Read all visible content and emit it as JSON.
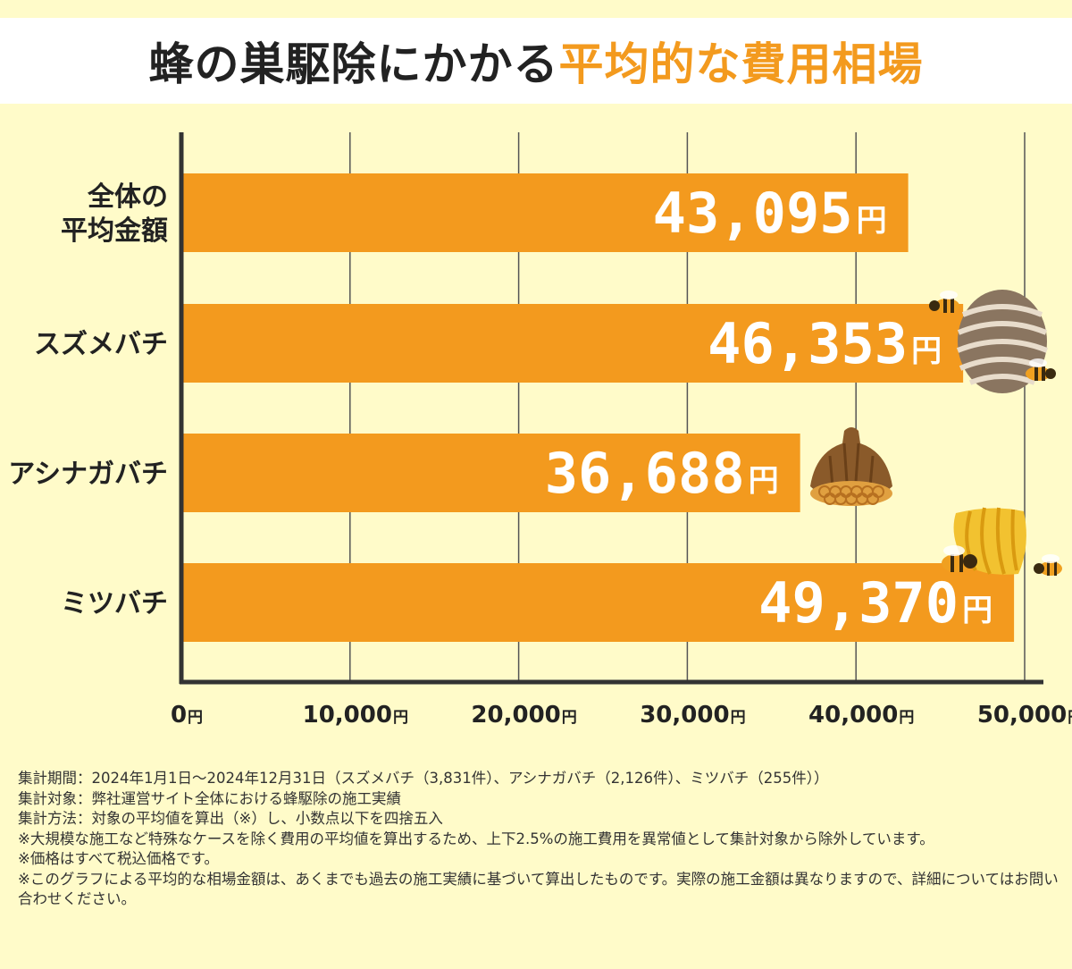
{
  "title": {
    "part1": "蜂の巣駆除にかかる",
    "part2": "平均的な費用相場"
  },
  "chart_data": {
    "type": "bar",
    "orientation": "horizontal",
    "categories": [
      [
        "全体の",
        "平均金額"
      ],
      [
        "スズメバチ"
      ],
      [
        "アシナガバチ"
      ],
      [
        "ミツバチ"
      ]
    ],
    "values": [
      43095,
      46353,
      36688,
      49370
    ],
    "value_labels": [
      "43,095",
      "46,353",
      "36,688",
      "49,370"
    ],
    "value_unit": "円",
    "xlim": [
      0,
      50000
    ],
    "xticks": [
      {
        "value": 0,
        "label": "0"
      },
      {
        "value": 10000,
        "label": "10,000"
      },
      {
        "value": 20000,
        "label": "20,000"
      },
      {
        "value": 30000,
        "label": "30,000"
      },
      {
        "value": 40000,
        "label": "40,000"
      },
      {
        "value": 50000,
        "label": "50,000"
      }
    ],
    "tick_unit": "円",
    "grid": true,
    "bar_color": "#f39a1e",
    "axis_color": "#333333"
  },
  "colors": {
    "background": "#fffbc9",
    "title_dark": "#222222",
    "title_accent": "#f39a1e"
  },
  "icons": [
    "hornet-nest-with-hornets-icon",
    "paper-wasp-nest-icon",
    "honeybee-hive-with-bees-icon"
  ],
  "notes": [
    "集計期間：2024年1月1日〜2024年12月31日（スズメバチ（3,831件）、アシナガバチ（2,126件）、ミツバチ（255件））",
    "集計対象：弊社運営サイト全体における蜂駆除の施工実績",
    "集計方法：対象の平均値を算出（※）し、小数点以下を四捨五入",
    "※大規模な施工など特殊なケースを除く費用の平均値を算出するため、上下2.5%の施工費用を異常値として集計対象から除外しています。",
    "※価格はすべて税込価格です。",
    "※このグラフによる平均的な相場金額は、あくまでも過去の施工実績に基づいて算出したものです。実際の施工金額は異なりますので、詳細についてはお問い合わせください。"
  ]
}
